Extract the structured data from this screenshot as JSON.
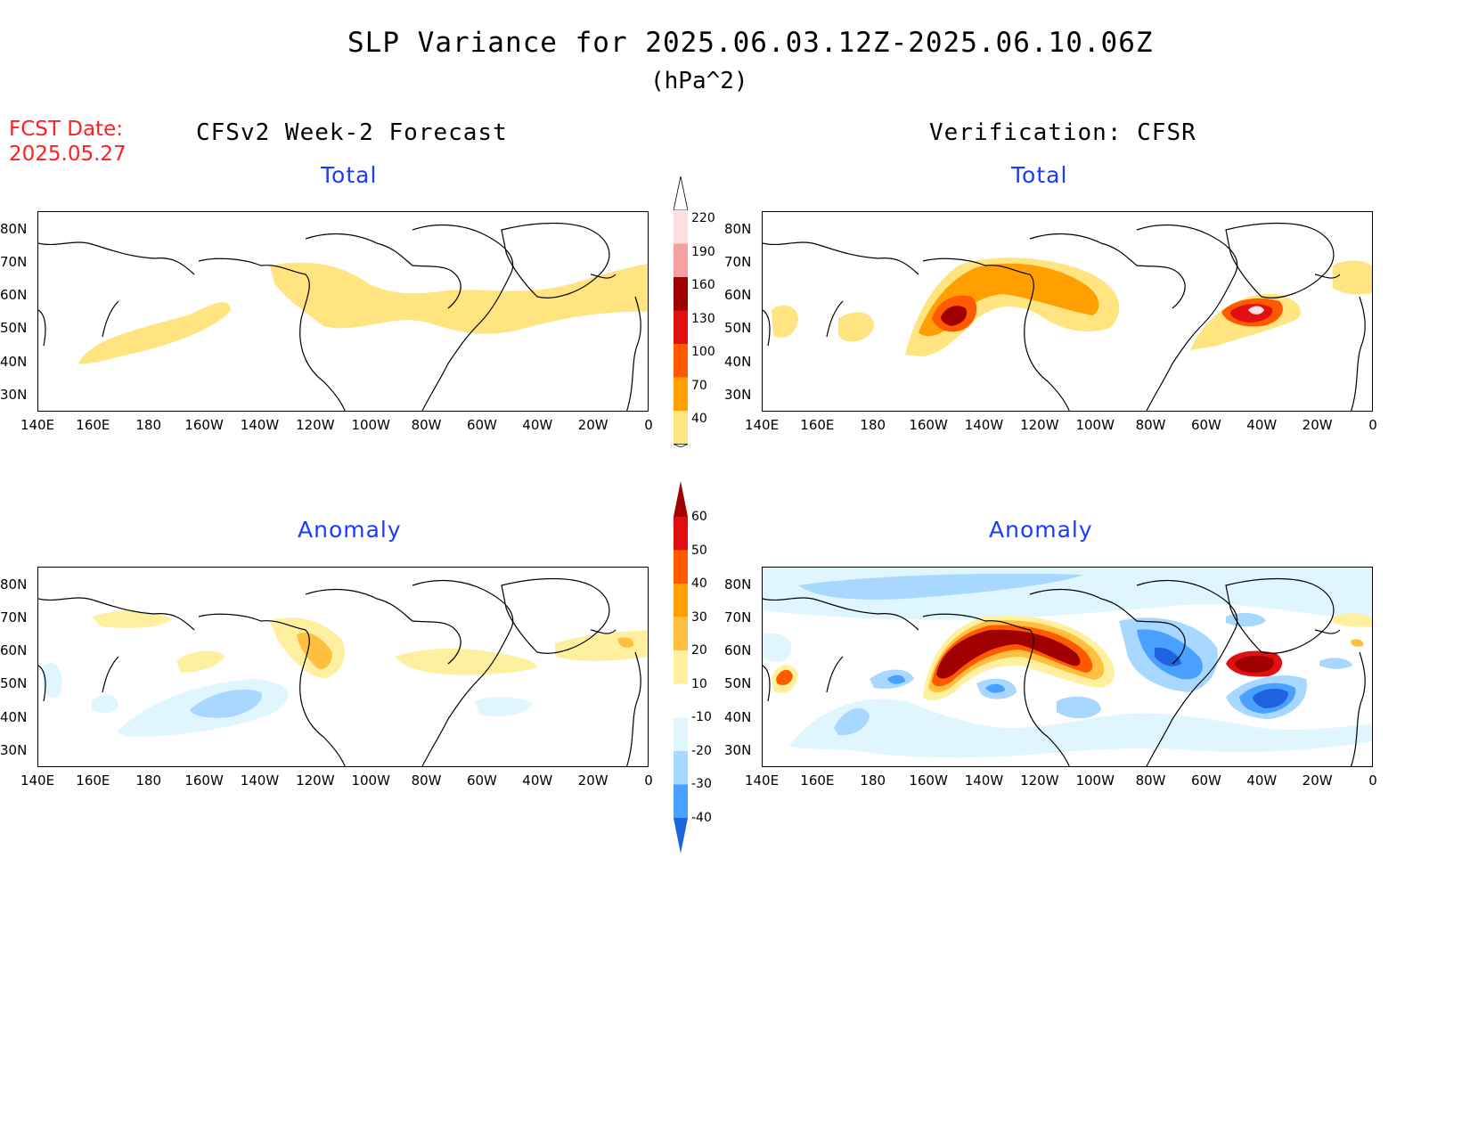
{
  "header": {
    "title": "SLP Variance for 2025.06.03.12Z-2025.06.10.06Z",
    "units": "(hPa^2)",
    "fcst_label": "FCST Date:",
    "fcst_date": "2025.05.27"
  },
  "columns": {
    "left_title": "CFSv2 Week-2 Forecast",
    "right_title": "Verification: CFSR"
  },
  "panels": {
    "top_left_sub": "Total",
    "top_right_sub": "Total",
    "bottom_left_sub": "Anomaly",
    "bottom_right_sub": "Anomaly"
  },
  "axes": {
    "lat_labels": [
      "80N",
      "70N",
      "60N",
      "50N",
      "40N",
      "30N"
    ],
    "lon_labels": [
      "140E",
      "160E",
      "180",
      "160W",
      "140W",
      "120W",
      "100W",
      "80W",
      "60W",
      "40W",
      "20W",
      "0"
    ]
  },
  "colorbars": {
    "total": {
      "labels": [
        "220",
        "190",
        "160",
        "130",
        "100",
        "70",
        "40"
      ],
      "colors": [
        "#fde0e0",
        "#f4a0a0",
        "#a00000",
        "#e01010",
        "#ff5a00",
        "#ffa000",
        "#ffe480"
      ]
    },
    "anomaly": {
      "labels": [
        "60",
        "50",
        "40",
        "30",
        "20",
        "10",
        "-10",
        "-20",
        "-30",
        "-40"
      ],
      "colors": [
        "#a00000",
        "#e01010",
        "#ff5a00",
        "#ffa000",
        "#ffc040",
        "#fff0a0",
        "#ffffff",
        "#e0f6ff",
        "#a8d8ff",
        "#4aa0ff",
        "#1e64e0"
      ]
    }
  }
}
